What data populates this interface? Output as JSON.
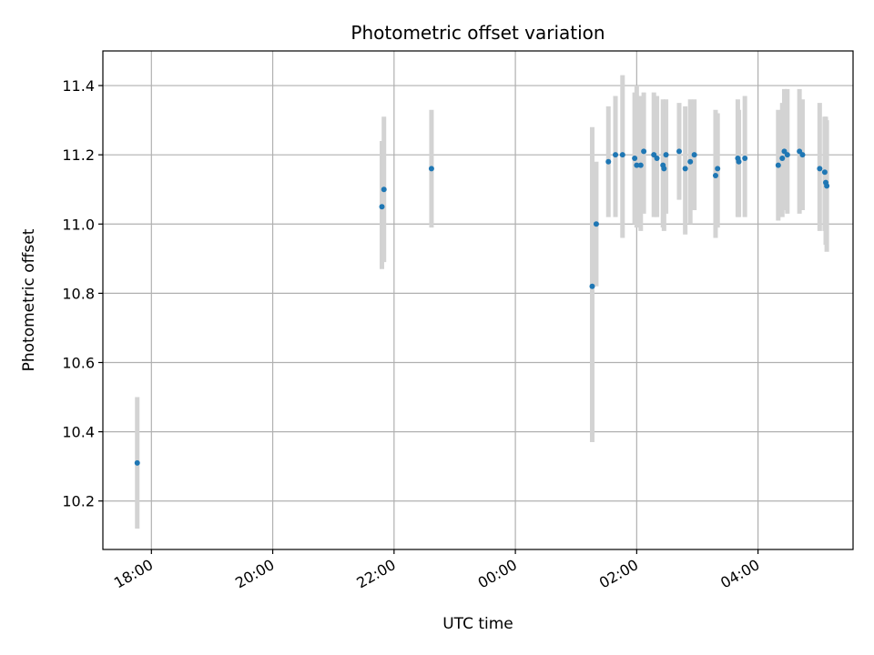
{
  "chart_data": {
    "type": "scatter",
    "title": "Photometric offset variation",
    "xlabel": "UTC time",
    "ylabel": "Photometric offset",
    "x_ticks": [
      "17:12",
      "18:00",
      "20:00",
      "22:00",
      "00:00",
      "02:00",
      "04:00",
      "05:34"
    ],
    "x_tick_labels": [
      "18:00",
      "20:00",
      "22:00",
      "00:00",
      "02:00",
      "04:00"
    ],
    "y_ticks": [
      10.2,
      10.4,
      10.6,
      10.8,
      11.0,
      11.2,
      11.4
    ],
    "y_tick_labels": [
      "10.2",
      "10.4",
      "10.6",
      "10.8",
      "11.0",
      "11.2",
      "11.4"
    ],
    "ylim": [
      10.06,
      11.5
    ],
    "grid": true,
    "colors": {
      "point": "#1f77b4",
      "errorbar": "#d3d3d3",
      "grid": "#b0b0b0"
    },
    "series": [
      {
        "points": [
          {
            "x": "17:46",
            "y": 10.31,
            "lo": 10.12,
            "hi": 10.5
          },
          {
            "x": "21:48",
            "y": 11.05,
            "lo": 10.87,
            "hi": 11.24
          },
          {
            "x": "21:50",
            "y": 11.1,
            "lo": 10.89,
            "hi": 11.31
          },
          {
            "x": "22:37",
            "y": 11.16,
            "lo": 10.99,
            "hi": 11.33
          },
          {
            "x": "01:16",
            "y": 10.82,
            "lo": 10.37,
            "hi": 11.28
          },
          {
            "x": "01:20",
            "y": 11.0,
            "lo": 10.82,
            "hi": 11.18
          },
          {
            "x": "01:32",
            "y": 11.18,
            "lo": 11.02,
            "hi": 11.34
          },
          {
            "x": "01:39",
            "y": 11.2,
            "lo": 11.02,
            "hi": 11.37
          },
          {
            "x": "01:46",
            "y": 11.2,
            "lo": 10.96,
            "hi": 11.43
          },
          {
            "x": "01:58",
            "y": 11.19,
            "lo": 11.0,
            "hi": 11.38
          },
          {
            "x": "02:00",
            "y": 11.17,
            "lo": 10.99,
            "hi": 11.4
          },
          {
            "x": "02:04",
            "y": 11.17,
            "lo": 10.98,
            "hi": 11.37
          },
          {
            "x": "02:07",
            "y": 11.21,
            "lo": 11.03,
            "hi": 11.38
          },
          {
            "x": "02:17",
            "y": 11.2,
            "lo": 11.02,
            "hi": 11.38
          },
          {
            "x": "02:20",
            "y": 11.19,
            "lo": 11.02,
            "hi": 11.37
          },
          {
            "x": "02:26",
            "y": 11.17,
            "lo": 10.99,
            "hi": 11.36
          },
          {
            "x": "02:27",
            "y": 11.16,
            "lo": 10.98,
            "hi": 11.35
          },
          {
            "x": "02:29",
            "y": 11.2,
            "lo": 11.03,
            "hi": 11.36
          },
          {
            "x": "02:42",
            "y": 11.21,
            "lo": 11.07,
            "hi": 11.35
          },
          {
            "x": "02:48",
            "y": 11.16,
            "lo": 10.97,
            "hi": 11.34
          },
          {
            "x": "02:53",
            "y": 11.18,
            "lo": 11.0,
            "hi": 11.36
          },
          {
            "x": "02:57",
            "y": 11.2,
            "lo": 11.04,
            "hi": 11.36
          },
          {
            "x": "03:18",
            "y": 11.14,
            "lo": 10.96,
            "hi": 11.33
          },
          {
            "x": "03:20",
            "y": 11.16,
            "lo": 10.99,
            "hi": 11.32
          },
          {
            "x": "03:40",
            "y": 11.19,
            "lo": 11.02,
            "hi": 11.36
          },
          {
            "x": "03:41",
            "y": 11.18,
            "lo": 11.02,
            "hi": 11.33
          },
          {
            "x": "03:47",
            "y": 11.19,
            "lo": 11.02,
            "hi": 11.37
          },
          {
            "x": "04:20",
            "y": 11.17,
            "lo": 11.01,
            "hi": 11.33
          },
          {
            "x": "04:24",
            "y": 11.19,
            "lo": 11.02,
            "hi": 11.35
          },
          {
            "x": "04:26",
            "y": 11.21,
            "lo": 11.04,
            "hi": 11.39
          },
          {
            "x": "04:29",
            "y": 11.2,
            "lo": 11.03,
            "hi": 11.39
          },
          {
            "x": "04:41",
            "y": 11.21,
            "lo": 11.03,
            "hi": 11.39
          },
          {
            "x": "04:44",
            "y": 11.2,
            "lo": 11.04,
            "hi": 11.36
          },
          {
            "x": "05:01",
            "y": 11.16,
            "lo": 10.98,
            "hi": 11.35
          },
          {
            "x": "05:06",
            "y": 11.15,
            "lo": 10.98,
            "hi": 11.31
          },
          {
            "x": "05:07",
            "y": 11.12,
            "lo": 10.94,
            "hi": 11.31
          },
          {
            "x": "05:08",
            "y": 11.11,
            "lo": 10.92,
            "hi": 11.3
          }
        ]
      }
    ]
  }
}
